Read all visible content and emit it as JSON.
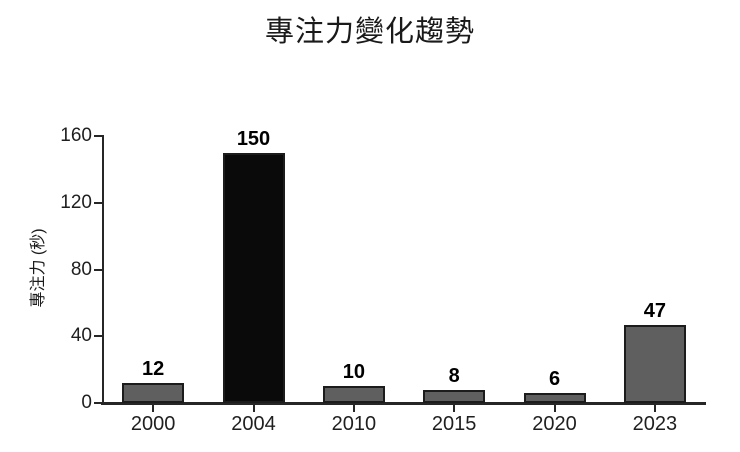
{
  "page": {
    "background": "#ffffff"
  },
  "chart_data": {
    "type": "bar",
    "title": "專注力變化趨勢",
    "xlabel": "",
    "ylabel": "專注力 (秒)",
    "categories": [
      "2000",
      "2004",
      "2010",
      "2015",
      "2020",
      "2023"
    ],
    "values": [
      12,
      150,
      10,
      8,
      6,
      47
    ],
    "value_labels": [
      "12",
      "150",
      "10",
      "8",
      "6",
      "47"
    ],
    "yticks": [
      0,
      40,
      80,
      120,
      160
    ],
    "ylim": [
      0,
      160
    ],
    "grid": false,
    "legend": "none",
    "highlight_index": 1,
    "colors": {
      "bar_default": "#5f5f5f",
      "bar_highlight": "#0a0a0a",
      "bar_border": "#1c1c1c",
      "axis": "#262626",
      "text": "#1a1a1a"
    }
  }
}
